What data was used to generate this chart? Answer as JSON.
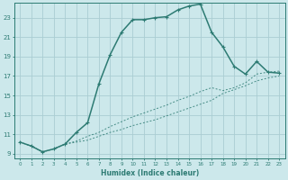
{
  "xlabel": "Humidex (Indice chaleur)",
  "bg_color": "#cce8eb",
  "grid_color": "#aacdd2",
  "line_color": "#2d7b73",
  "xlim": [
    -0.5,
    23.5
  ],
  "ylim": [
    8.5,
    24.5
  ],
  "yticks": [
    9,
    11,
    13,
    15,
    17,
    19,
    21,
    23
  ],
  "xticks": [
    0,
    1,
    2,
    3,
    4,
    5,
    6,
    7,
    8,
    9,
    10,
    11,
    12,
    13,
    14,
    15,
    16,
    17,
    18,
    19,
    20,
    21,
    22,
    23
  ],
  "series1_x": [
    0,
    1,
    2,
    3,
    4,
    5,
    6,
    7,
    8,
    9,
    10,
    11,
    12,
    13,
    14,
    15,
    16,
    17,
    18,
    19,
    20,
    21,
    22,
    23
  ],
  "series1_y": [
    10.2,
    9.8,
    9.2,
    9.5,
    10.0,
    10.3,
    10.8,
    11.2,
    11.8,
    12.3,
    12.8,
    13.2,
    13.6,
    14.0,
    14.5,
    14.9,
    15.4,
    15.8,
    15.5,
    15.8,
    16.3,
    17.2,
    17.4,
    17.5
  ],
  "series2_x": [
    0,
    1,
    2,
    3,
    4,
    5,
    6,
    7,
    8,
    9,
    10,
    11,
    12,
    13,
    14,
    15,
    16,
    17,
    18,
    19,
    20,
    21,
    22,
    23
  ],
  "series2_y": [
    10.2,
    9.8,
    9.2,
    9.5,
    10.0,
    10.2,
    10.4,
    10.8,
    11.2,
    11.5,
    11.9,
    12.2,
    12.5,
    12.9,
    13.3,
    13.7,
    14.1,
    14.5,
    15.2,
    15.6,
    16.0,
    16.5,
    16.8,
    17.0
  ],
  "series3_x": [
    0,
    1,
    2,
    3,
    4,
    5,
    6,
    7,
    8,
    9,
    10,
    11,
    12,
    13,
    14,
    15,
    16,
    17,
    18,
    19,
    20,
    21,
    22,
    23
  ],
  "series3_y": [
    10.2,
    9.8,
    9.2,
    9.5,
    10.0,
    11.2,
    12.2,
    16.2,
    19.2,
    21.5,
    22.8,
    22.8,
    23.0,
    23.1,
    23.8,
    24.2,
    24.4,
    21.5,
    20.0,
    18.0,
    17.2,
    18.5,
    17.4,
    17.3
  ]
}
